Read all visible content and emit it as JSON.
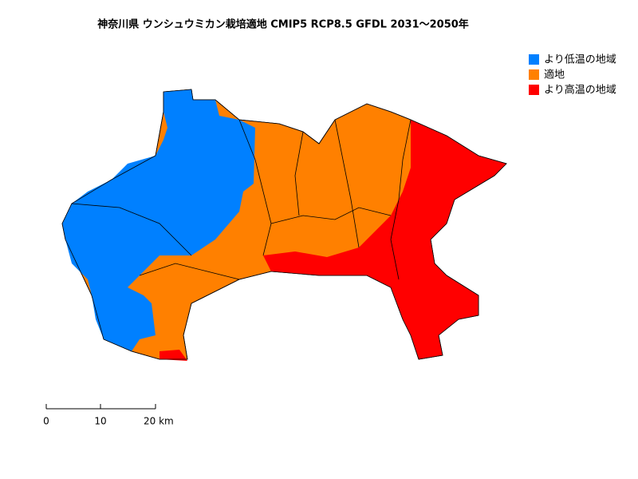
{
  "title": "神奈川県 ウンシュウミカン栽培適地 CMIP5 RCP8.5 GFDL 2031～2050年",
  "legend": [
    {
      "label": "より低温の地域",
      "color": "#0080ff"
    },
    {
      "label": "適地",
      "color": "#ff8000"
    },
    {
      "label": "より高温の地域",
      "color": "#ff0000"
    }
  ],
  "scale_bar": {
    "labels": [
      "0",
      "10",
      "20 km"
    ]
  }
}
